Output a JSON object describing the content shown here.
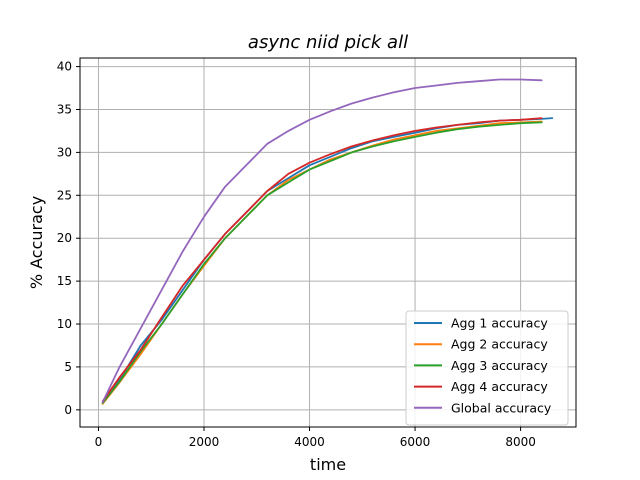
{
  "chart_data": {
    "type": "line",
    "title": "async niid pick all",
    "xlabel": "time",
    "ylabel": "% Accuracy",
    "xlim": [
      -350,
      9050
    ],
    "ylim": [
      -2,
      41
    ],
    "xticks": [
      0,
      2000,
      4000,
      6000,
      8000
    ],
    "yticks": [
      0,
      5,
      10,
      15,
      20,
      25,
      30,
      35,
      40
    ],
    "grid": true,
    "legend_position": "lower-right",
    "series": [
      {
        "name": "Agg 1 accuracy",
        "color": "#1f77b4",
        "x": [
          80,
          400,
          800,
          1200,
          1600,
          2000,
          2400,
          2800,
          3200,
          3600,
          4000,
          4400,
          4800,
          5200,
          5600,
          6000,
          6400,
          6800,
          7200,
          7600,
          8000,
          8400,
          8600
        ],
        "y": [
          0.8,
          3.5,
          7.5,
          10.5,
          14.0,
          17.5,
          20.5,
          23.0,
          25.5,
          27.0,
          28.5,
          29.5,
          30.5,
          31.3,
          31.8,
          32.3,
          32.8,
          33.2,
          33.4,
          33.7,
          33.8,
          33.9,
          34.0
        ]
      },
      {
        "name": "Agg 2 accuracy",
        "color": "#ff7f0e",
        "x": [
          80,
          400,
          800,
          1200,
          1600,
          2000,
          2400,
          2800,
          3200,
          3600,
          4000,
          4400,
          4800,
          5200,
          5600,
          6000,
          6400,
          6800,
          7200,
          7600,
          8000,
          8400
        ],
        "y": [
          0.7,
          3.2,
          6.5,
          10.0,
          13.5,
          16.8,
          20.0,
          22.5,
          25.0,
          26.8,
          28.0,
          29.2,
          30.0,
          30.8,
          31.5,
          32.0,
          32.5,
          32.8,
          33.1,
          33.4,
          33.5,
          33.6
        ]
      },
      {
        "name": "Agg 3 accuracy",
        "color": "#2ca02c",
        "x": [
          80,
          400,
          800,
          1200,
          1600,
          2000,
          2400,
          2800,
          3200,
          3600,
          4000,
          4400,
          4800,
          5200,
          5600,
          6000,
          6400,
          6800,
          7200,
          7600,
          8000,
          8400
        ],
        "y": [
          0.8,
          3.3,
          6.8,
          10.0,
          13.5,
          17.0,
          20.0,
          22.5,
          25.0,
          26.5,
          28.0,
          29.0,
          30.0,
          30.7,
          31.3,
          31.8,
          32.3,
          32.7,
          33.0,
          33.2,
          33.4,
          33.5
        ]
      },
      {
        "name": "Agg 4 accuracy",
        "color": "#d62728",
        "x": [
          80,
          400,
          800,
          1200,
          1600,
          2000,
          2400,
          2800,
          3200,
          3600,
          4000,
          4400,
          4800,
          5200,
          5600,
          6000,
          6400,
          6800,
          7200,
          7600,
          8000,
          8400
        ],
        "y": [
          1.0,
          3.8,
          7.0,
          10.8,
          14.5,
          17.5,
          20.5,
          23.0,
          25.5,
          27.5,
          28.8,
          29.8,
          30.7,
          31.4,
          32.0,
          32.5,
          32.9,
          33.2,
          33.5,
          33.7,
          33.8,
          34.0
        ]
      },
      {
        "name": "Global accuracy",
        "color": "#9467bd",
        "x": [
          80,
          400,
          800,
          1200,
          1600,
          2000,
          2400,
          2800,
          3200,
          3600,
          4000,
          4400,
          4800,
          5200,
          5600,
          6000,
          6400,
          6800,
          7200,
          7600,
          8000,
          8400
        ],
        "y": [
          0.9,
          5.0,
          9.5,
          14.0,
          18.5,
          22.5,
          26.0,
          28.5,
          31.0,
          32.5,
          33.8,
          34.8,
          35.7,
          36.4,
          37.0,
          37.5,
          37.8,
          38.1,
          38.3,
          38.5,
          38.5,
          38.4
        ]
      }
    ]
  }
}
